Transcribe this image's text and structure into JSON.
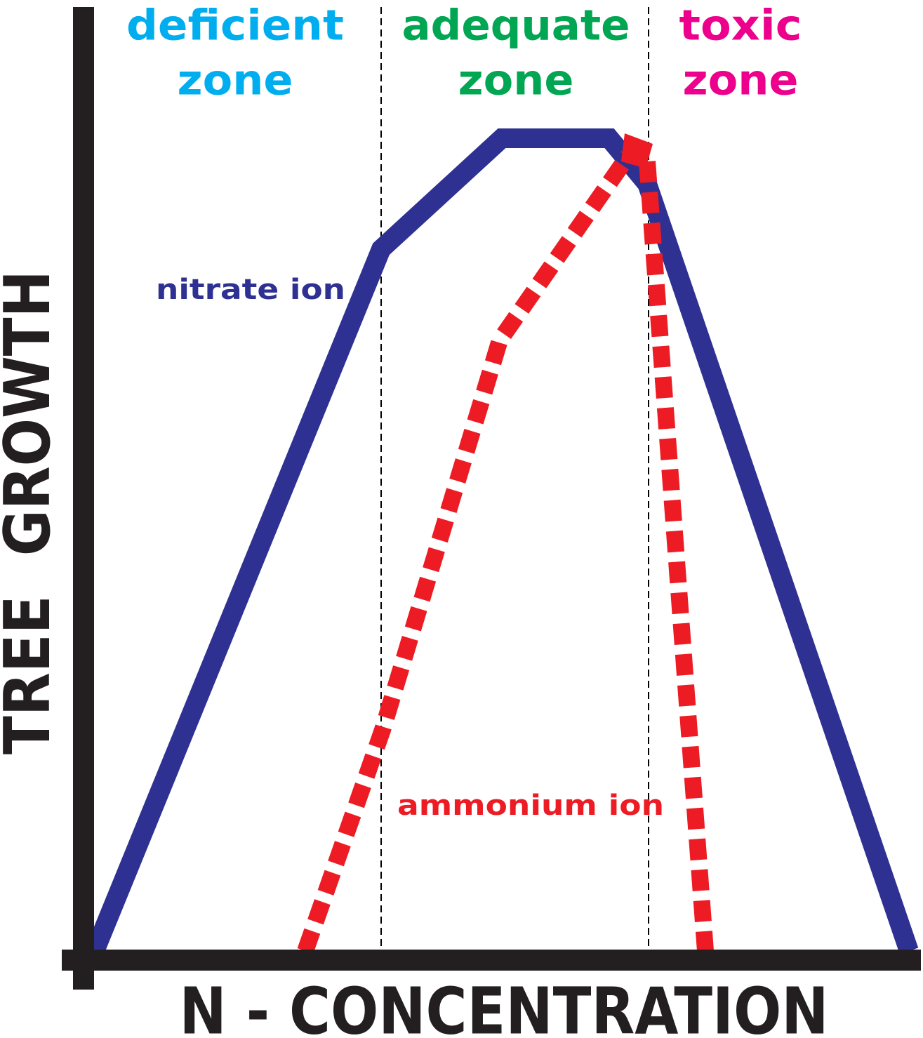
{
  "zones": [
    {
      "title": "deficient",
      "subtitle": "zone"
    },
    {
      "title": "adequate",
      "subtitle": "zone"
    },
    {
      "title": "toxic",
      "subtitle": "zone"
    }
  ],
  "curves": {
    "nitrate": "nitrate ion",
    "ammonium": "ammonium ion"
  },
  "axes": {
    "y_label": "TREE  GROWTH",
    "x_label": "N - CONCENTRATION"
  }
}
